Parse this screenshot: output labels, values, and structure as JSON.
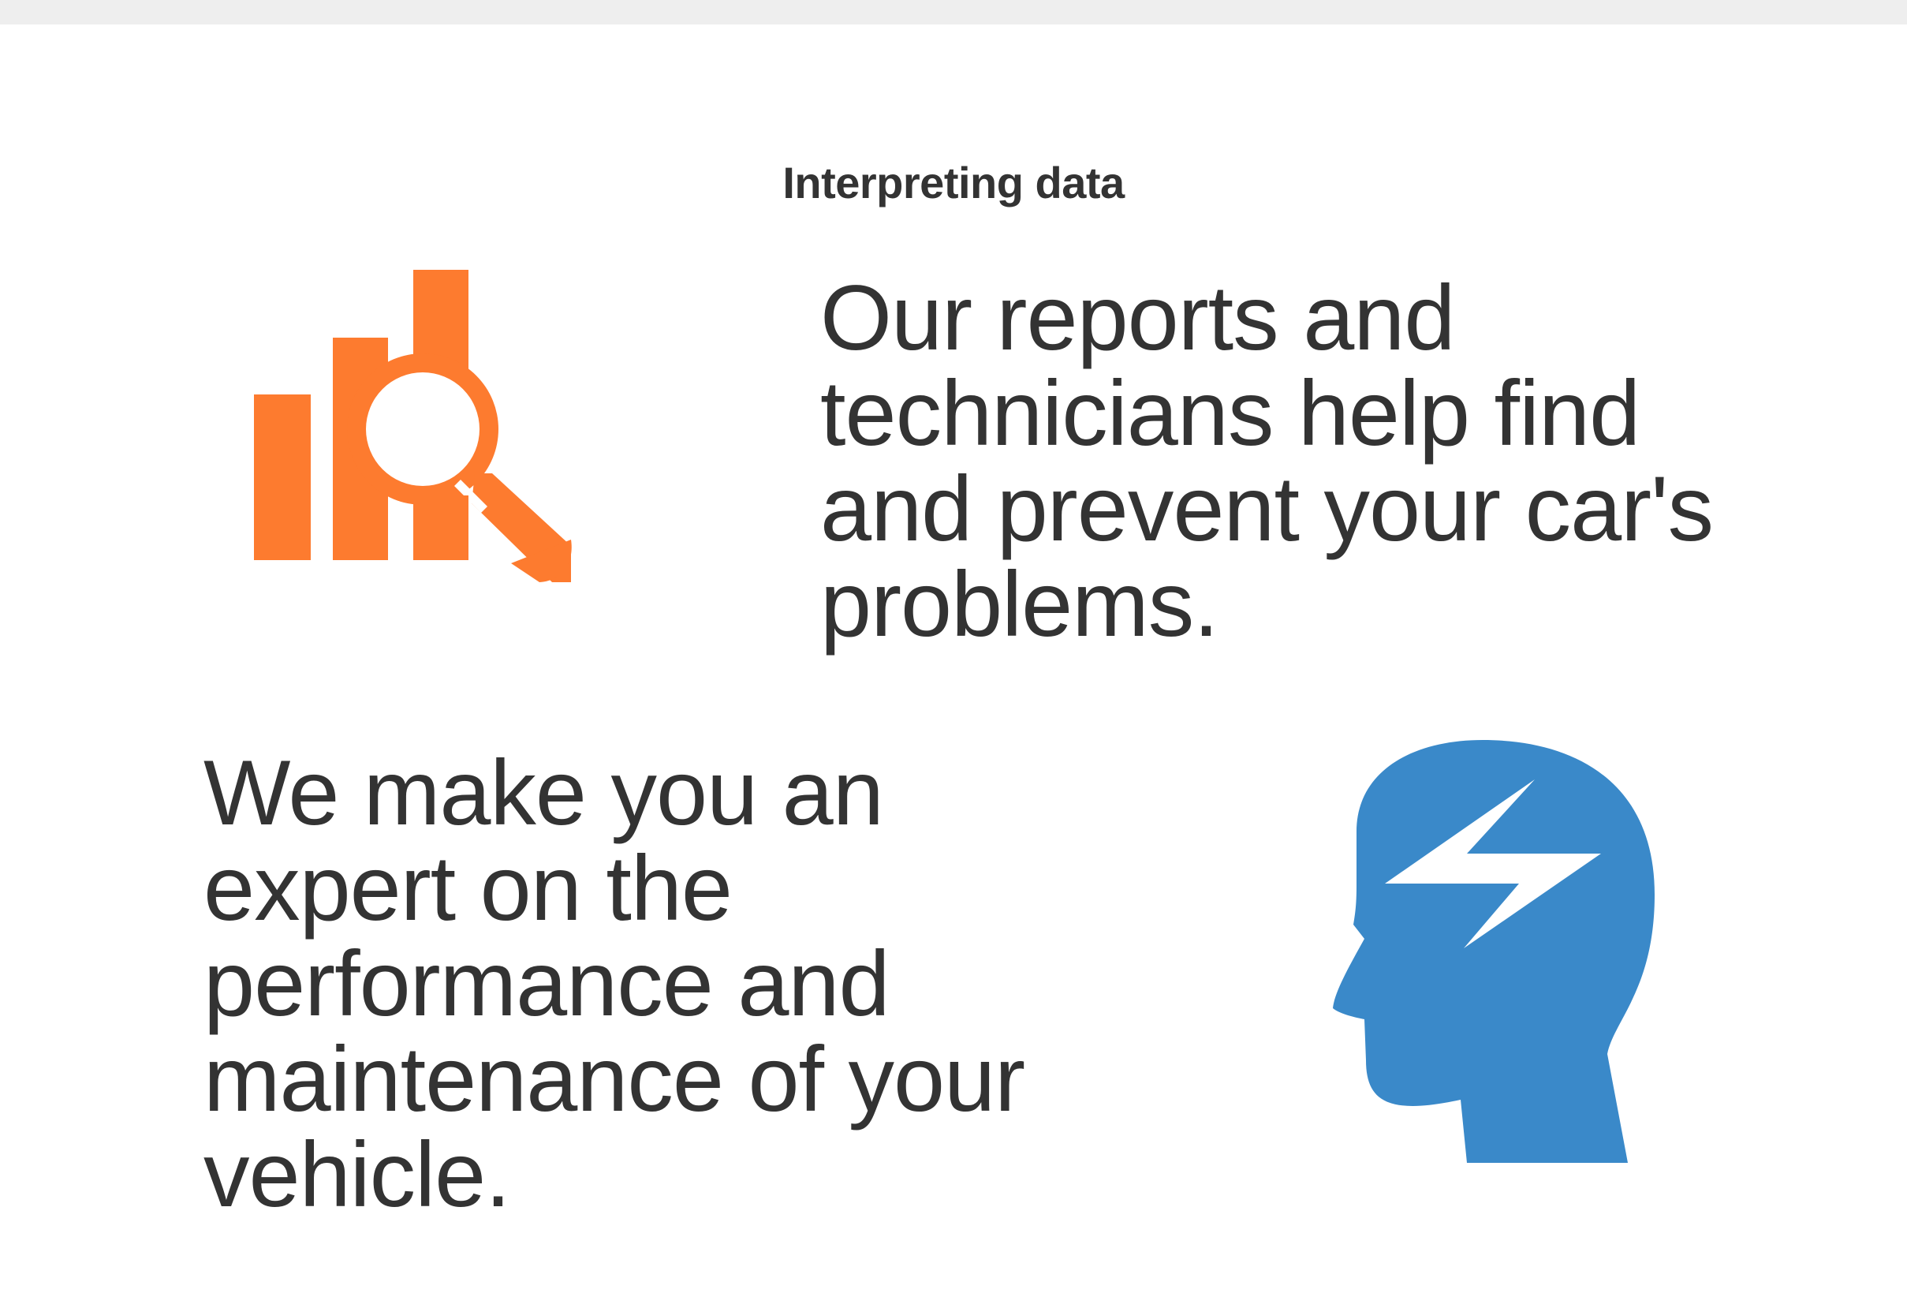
{
  "section": {
    "title": "Interpreting data"
  },
  "features": [
    {
      "icon": "chart-magnifier-icon",
      "color": "#fd7b2f",
      "text": "Our reports and technicians help find and prevent your car's problems."
    },
    {
      "icon": "head-lightning-icon",
      "color": "#3a89c9",
      "text": "We make you an expert on the performance and maintenance of your vehicle."
    }
  ]
}
